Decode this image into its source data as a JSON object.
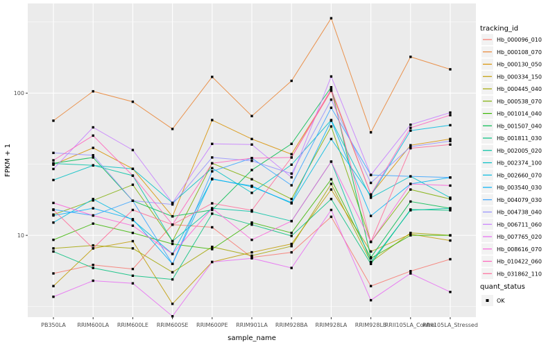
{
  "figure": {
    "background": "#FFFFFF",
    "panel_background": "#EBEBEB",
    "grid_color": "#FFFFFF",
    "tick_label_color": "#4D4D4D",
    "point_color": "#000000",
    "legend_key_background": "#F2F2F2"
  },
  "chart_data": {
    "type": "line",
    "title": "",
    "xlabel": "sample_name",
    "ylabel": "FPKM + 1",
    "y_scale": "log10",
    "ylim": [
      2.66,
      427
    ],
    "y_ticks": [
      10,
      100
    ],
    "y_tick_labels": [
      "10",
      "100"
    ],
    "y_minor_gridlines": [
      3.162,
      31.62,
      316.2
    ],
    "grid": "on",
    "legend_position": "right",
    "legend_title": "tracking_id",
    "marker_legend_title": "quant_status",
    "marker_legend_items": [
      {
        "label": "OK",
        "marker": "black-square-point"
      }
    ],
    "categories": [
      "PB350LA",
      "RRIM600LA",
      "RRIM600LE",
      "RRIM600SE",
      "RRIM600PE",
      "RRIM901LA",
      "RRIM928BA",
      "RRIM928LA",
      "RRIM928LB",
      "RRII105LA_Control",
      "RRII105LA_Stressed"
    ],
    "series": [
      {
        "name": "Hb_000096_010",
        "color": "#F8766D",
        "values": [
          5.4,
          6.2,
          5.8,
          11.9,
          11.4,
          7.0,
          7.6,
          13.5,
          4.4,
          5.6,
          6.8
        ]
      },
      {
        "name": "Hb_000108_070",
        "color": "#EA8331",
        "values": [
          64,
          103,
          87,
          56,
          130,
          69,
          122,
          336,
          53,
          180,
          147
        ]
      },
      {
        "name": "Hb_000130_050",
        "color": "#D89000",
        "values": [
          31.4,
          41.2,
          29.4,
          13.6,
          64.7,
          47.6,
          37.2,
          104,
          19.4,
          43,
          47.6
        ]
      },
      {
        "name": "Hb_000334_150",
        "color": "#C09B00",
        "values": [
          4.4,
          8.1,
          9.1,
          3.3,
          6.5,
          7.6,
          8.7,
          21,
          7.7,
          10.2,
          9.2
        ]
      },
      {
        "name": "Hb_000445_040",
        "color": "#A3A500",
        "values": [
          8.1,
          8.5,
          8.1,
          5.5,
          8.3,
          7.2,
          8.4,
          23,
          6.5,
          10.4,
          10
        ]
      },
      {
        "name": "Hb_000538_070",
        "color": "#7CAE00",
        "values": [
          14,
          17.6,
          22.7,
          9.1,
          32.1,
          24.8,
          18,
          58.3,
          9.0,
          21,
          18
        ]
      },
      {
        "name": "Hb_001014_040",
        "color": "#39B600",
        "values": [
          9.3,
          12.1,
          10.4,
          8.7,
          8.0,
          12.3,
          10.4,
          24.8,
          6.9,
          10,
          10
        ]
      },
      {
        "name": "Hb_001507_040",
        "color": "#00BB4E",
        "values": [
          32.1,
          35.3,
          17.5,
          13.6,
          15.1,
          28.8,
          44,
          110,
          7.0,
          17.3,
          15.5
        ]
      },
      {
        "name": "Hb_001811_030",
        "color": "#00BF7D",
        "values": [
          7.7,
          5.9,
          5.2,
          4.9,
          14.2,
          11.9,
          9.9,
          18,
          6.3,
          15.2,
          15
        ]
      },
      {
        "name": "Hb_002005_020",
        "color": "#00C1A3",
        "values": [
          32,
          31.1,
          26.3,
          9.1,
          15.5,
          14.7,
          12.6,
          33,
          6.5,
          15,
          15.5
        ]
      },
      {
        "name": "Hb_002374_100",
        "color": "#00BFC4",
        "values": [
          24.5,
          31,
          29.4,
          16.9,
          29.7,
          19.9,
          31.4,
          64.7,
          18.4,
          26,
          18.4
        ]
      },
      {
        "name": "Hb_002660_070",
        "color": "#00BAE0",
        "values": [
          12.3,
          18,
          12.8,
          7.4,
          24.8,
          22.3,
          16.8,
          47.6,
          19,
          54.5,
          59.5
        ]
      },
      {
        "name": "Hb_003540_030",
        "color": "#00B0F6",
        "values": [
          13.8,
          15.5,
          13,
          6.3,
          25,
          22,
          17,
          64,
          13.7,
          23,
          25.5
        ]
      },
      {
        "name": "Hb_004079_030",
        "color": "#35A2FF",
        "values": [
          15.2,
          13.8,
          17.5,
          6.3,
          28.2,
          34.9,
          22.5,
          78.9,
          26.6,
          26,
          25.5
        ]
      },
      {
        "name": "Hb_004738_040",
        "color": "#9590FF",
        "values": [
          38,
          36.6,
          17.5,
          16.5,
          35.3,
          33.4,
          27.2,
          90,
          23.4,
          42,
          46
        ]
      },
      {
        "name": "Hb_006711_060",
        "color": "#C77CFF",
        "values": [
          29.3,
          57.5,
          39.8,
          16.9,
          44,
          43.5,
          25.6,
          131,
          26.6,
          60,
          73
        ]
      },
      {
        "name": "Hb_007765_020",
        "color": "#E76BF3",
        "values": [
          3.7,
          4.8,
          4.6,
          2.7,
          6.5,
          6.9,
          5.9,
          15.1,
          3.5,
          5.4,
          4.0
        ]
      },
      {
        "name": "Hb_008616_070",
        "color": "#FA62DB",
        "values": [
          16.9,
          13.8,
          11.7,
          7.4,
          15.5,
          9.3,
          12.6,
          33,
          9.0,
          23,
          22.4
        ]
      },
      {
        "name": "Hb_010422_060",
        "color": "#FF62BC",
        "values": [
          33.7,
          50.3,
          26.3,
          11.9,
          32.1,
          34.9,
          35.3,
          107,
          19.4,
          57,
          70
        ]
      },
      {
        "name": "Hb_031862_110",
        "color": "#FF6A98",
        "values": [
          15.1,
          8.1,
          15.1,
          11.9,
          16.8,
          15,
          35.3,
          104,
          9.0,
          41,
          43.5
        ]
      }
    ]
  }
}
